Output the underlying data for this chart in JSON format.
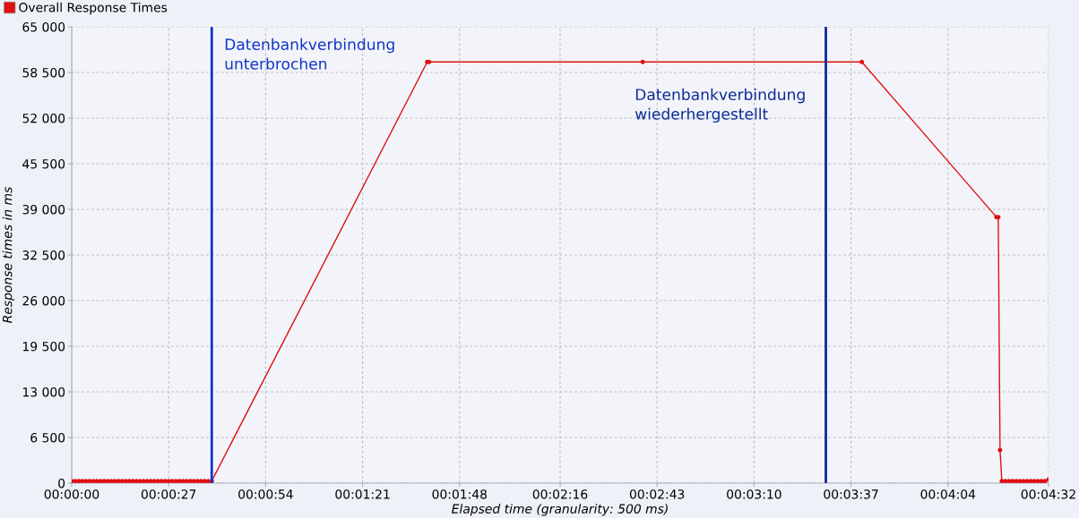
{
  "chart_data": {
    "type": "line",
    "xlabel": "Elapsed time (granularity: 500 ms)",
    "ylabel": "Response times in ms",
    "series": [
      {
        "name": "Overall Response Times",
        "color": "#e01010",
        "x": [
          0,
          1,
          2,
          3,
          4,
          5,
          6,
          7,
          8,
          9,
          10,
          11,
          12,
          13,
          14,
          15,
          16,
          17,
          18,
          19,
          20,
          21,
          22,
          23,
          24,
          25,
          26,
          27,
          28,
          29,
          30,
          31,
          32,
          33,
          34,
          35,
          36,
          37,
          38,
          39,
          99,
          99.5,
          159,
          220,
          257.5,
          258,
          258.5,
          259,
          260,
          261,
          262,
          263,
          264,
          265,
          266,
          267,
          268,
          269,
          270,
          271,
          272
        ],
        "values": [
          300,
          300,
          300,
          300,
          300,
          300,
          300,
          300,
          300,
          300,
          300,
          300,
          300,
          300,
          300,
          300,
          300,
          300,
          300,
          300,
          300,
          300,
          300,
          300,
          300,
          300,
          300,
          300,
          300,
          300,
          300,
          300,
          300,
          300,
          300,
          300,
          300,
          300,
          300,
          300,
          60000,
          60000,
          60000,
          60000,
          37900,
          37900,
          4700,
          300,
          300,
          300,
          300,
          300,
          300,
          300,
          300,
          300,
          300,
          300,
          300,
          300,
          500
        ]
      }
    ],
    "xlim": [
      0,
      272
    ],
    "xticks": [
      {
        "value": 0,
        "label": "00:00:00"
      },
      {
        "value": 27,
        "label": "00:00:27"
      },
      {
        "value": 54,
        "label": "00:00:54"
      },
      {
        "value": 81,
        "label": "00:01:21"
      },
      {
        "value": 108,
        "label": "00:01:48"
      },
      {
        "value": 136,
        "label": "00:02:16"
      },
      {
        "value": 163,
        "label": "00:02:43"
      },
      {
        "value": 190,
        "label": "00:03:10"
      },
      {
        "value": 217,
        "label": "00:03:37"
      },
      {
        "value": 244,
        "label": "00:04:04"
      },
      {
        "value": 272,
        "label": "00:04:32"
      }
    ],
    "ylim": [
      0,
      65000
    ],
    "yticks": [
      0,
      {
        "value": 6500,
        "label": "6 500"
      },
      {
        "value": 13000,
        "label": "13 000"
      },
      {
        "value": 19500,
        "label": "19 500"
      },
      {
        "value": 26000,
        "label": "26 000"
      },
      {
        "value": 32500,
        "label": "32 500"
      },
      {
        "value": 39000,
        "label": "39 000"
      },
      {
        "value": 45500,
        "label": "45 500"
      },
      {
        "value": 52000,
        "label": "52 000"
      },
      {
        "value": 58500,
        "label": "58 500"
      },
      {
        "value": 65000,
        "label": "65 000"
      }
    ],
    "ref_lines": [
      {
        "axis": "x",
        "value": 39,
        "label": "Datenbankverbindung\nunterbrochen",
        "color": "#1234c8"
      },
      {
        "axis": "x",
        "value": 210,
        "label": "Datenbankverbindung\nwiederhergestellt",
        "color": "#0c2a96"
      }
    ],
    "grid": true,
    "legend": "top left",
    "marker": "circle",
    "line_style": "solid"
  }
}
